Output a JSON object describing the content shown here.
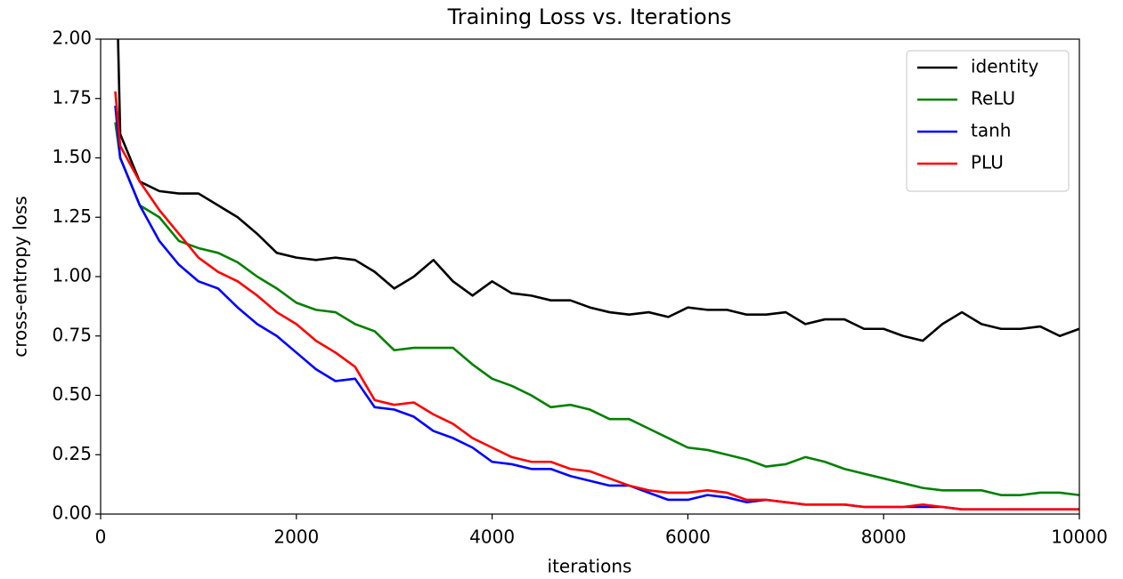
{
  "chart_data": {
    "type": "line",
    "title": "Training Loss vs. Iterations",
    "x_label": "iterations",
    "y_label": "cross-entropy loss",
    "x": [
      150,
      200,
      400,
      600,
      800,
      1000,
      1200,
      1400,
      1600,
      1800,
      2000,
      2200,
      2400,
      2600,
      2800,
      3000,
      3200,
      3400,
      3600,
      3800,
      4000,
      4200,
      4400,
      4600,
      4800,
      5000,
      5200,
      5400,
      5600,
      5800,
      6000,
      6200,
      6400,
      6600,
      6800,
      7000,
      7200,
      7400,
      7600,
      7800,
      8000,
      8200,
      8400,
      8600,
      8800,
      9000,
      9200,
      9400,
      9600,
      9800,
      10000
    ],
    "series": [
      {
        "name": "identity",
        "color": "#000000",
        "values": [
          2.5,
          1.6,
          1.4,
          1.36,
          1.35,
          1.35,
          1.3,
          1.25,
          1.18,
          1.1,
          1.08,
          1.07,
          1.08,
          1.07,
          1.02,
          0.95,
          1.0,
          1.07,
          0.98,
          0.92,
          0.98,
          0.93,
          0.92,
          0.9,
          0.9,
          0.87,
          0.85,
          0.84,
          0.85,
          0.83,
          0.87,
          0.86,
          0.86,
          0.84,
          0.84,
          0.85,
          0.8,
          0.82,
          0.82,
          0.78,
          0.78,
          0.75,
          0.73,
          0.8,
          0.85,
          0.8,
          0.78,
          0.78,
          0.79,
          0.75,
          0.78
        ]
      },
      {
        "name": "ReLU",
        "color": "#008000",
        "values": [
          1.65,
          1.5,
          1.3,
          1.25,
          1.15,
          1.12,
          1.1,
          1.06,
          1.0,
          0.95,
          0.89,
          0.86,
          0.85,
          0.8,
          0.77,
          0.69,
          0.7,
          0.7,
          0.7,
          0.63,
          0.57,
          0.54,
          0.5,
          0.45,
          0.46,
          0.44,
          0.4,
          0.4,
          0.36,
          0.32,
          0.28,
          0.27,
          0.25,
          0.23,
          0.2,
          0.21,
          0.24,
          0.22,
          0.19,
          0.17,
          0.15,
          0.13,
          0.11,
          0.1,
          0.1,
          0.1,
          0.08,
          0.08,
          0.09,
          0.09,
          0.08
        ]
      },
      {
        "name": "tanh",
        "color": "#0000ff",
        "values": [
          1.72,
          1.5,
          1.3,
          1.15,
          1.05,
          0.98,
          0.95,
          0.87,
          0.8,
          0.75,
          0.68,
          0.61,
          0.56,
          0.57,
          0.45,
          0.44,
          0.41,
          0.35,
          0.32,
          0.28,
          0.22,
          0.21,
          0.19,
          0.19,
          0.16,
          0.14,
          0.12,
          0.12,
          0.09,
          0.06,
          0.06,
          0.08,
          0.07,
          0.05,
          0.06,
          0.05,
          0.04,
          0.04,
          0.04,
          0.03,
          0.03,
          0.03,
          0.03,
          0.03,
          0.02,
          0.02,
          0.02,
          0.02,
          0.02,
          0.02,
          0.02
        ]
      },
      {
        "name": "PLU",
        "color": "#ff0000",
        "values": [
          1.78,
          1.55,
          1.4,
          1.28,
          1.18,
          1.08,
          1.02,
          0.98,
          0.92,
          0.85,
          0.8,
          0.73,
          0.68,
          0.62,
          0.48,
          0.46,
          0.47,
          0.42,
          0.38,
          0.32,
          0.28,
          0.24,
          0.22,
          0.22,
          0.19,
          0.18,
          0.15,
          0.12,
          0.1,
          0.09,
          0.09,
          0.1,
          0.09,
          0.06,
          0.06,
          0.05,
          0.04,
          0.04,
          0.04,
          0.03,
          0.03,
          0.03,
          0.04,
          0.03,
          0.02,
          0.02,
          0.02,
          0.02,
          0.02,
          0.02,
          0.02
        ]
      }
    ],
    "xlim": [
      0,
      10000
    ],
    "xticks": [
      0,
      2000,
      4000,
      6000,
      8000,
      10000
    ],
    "ylim": [
      0,
      2
    ],
    "yticks": [
      {
        "value": 0,
        "label": "0.00"
      },
      {
        "value": 0.25,
        "label": "0.25"
      },
      {
        "value": 0.5,
        "label": "0.50"
      },
      {
        "value": 0.75,
        "label": "0.75"
      },
      {
        "value": 1,
        "label": "1.00"
      },
      {
        "value": 1.25,
        "label": "1.25"
      },
      {
        "value": 1.5,
        "label": "1.50"
      },
      {
        "value": 1.75,
        "label": "1.75"
      },
      {
        "value": 2,
        "label": "2.00"
      }
    ],
    "grid": false,
    "legend": "upper right"
  }
}
